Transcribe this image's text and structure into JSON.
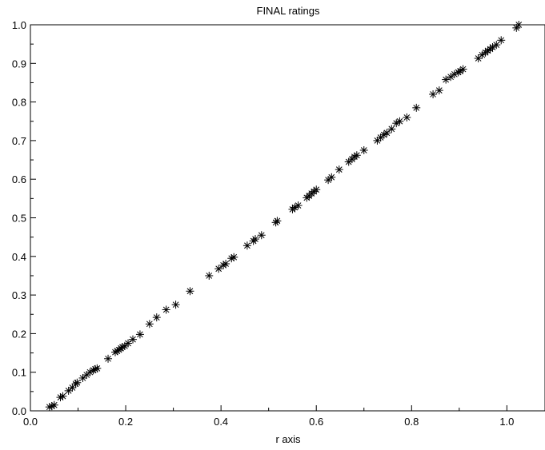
{
  "chart_data": {
    "type": "scatter",
    "title": "FINAL ratings",
    "xlabel": "r axis",
    "ylabel": "",
    "xlim": [
      0.0,
      1.08
    ],
    "ylim": [
      0.0,
      1.0
    ],
    "xticks": [
      0.0,
      0.2,
      0.4,
      0.6,
      0.8,
      1.0
    ],
    "xtick_labels": [
      "0.0",
      "0.2",
      "0.4",
      "0.6",
      "0.8",
      "1.0"
    ],
    "yticks": [
      0.0,
      0.1,
      0.2,
      0.3,
      0.4,
      0.5,
      0.6,
      0.7,
      0.8,
      0.9,
      1.0
    ],
    "ytick_labels": [
      "0.0",
      "0.1",
      "0.2",
      "0.3",
      "0.4",
      "0.5",
      "0.6",
      "0.7",
      "0.8",
      "0.9",
      "1.0"
    ],
    "grid": false,
    "marker": "asterisk",
    "marker_color": "#000000",
    "series": [
      {
        "x": [
          0.04,
          0.045,
          0.05,
          0.063,
          0.068,
          0.08,
          0.088,
          0.095,
          0.098,
          0.11,
          0.118,
          0.125,
          0.132,
          0.136,
          0.14,
          0.163,
          0.178,
          0.182,
          0.186,
          0.19,
          0.193,
          0.198,
          0.205,
          0.215,
          0.23,
          0.25,
          0.265,
          0.285,
          0.305,
          0.335,
          0.375,
          0.395,
          0.405,
          0.41,
          0.422,
          0.427,
          0.455,
          0.468,
          0.472,
          0.485,
          0.515,
          0.518,
          0.55,
          0.555,
          0.562,
          0.58,
          0.585,
          0.59,
          0.595,
          0.6,
          0.625,
          0.632,
          0.648,
          0.668,
          0.675,
          0.68,
          0.685,
          0.7,
          0.728,
          0.735,
          0.742,
          0.748,
          0.758,
          0.768,
          0.775,
          0.79,
          0.81,
          0.845,
          0.858,
          0.872,
          0.882,
          0.89,
          0.898,
          0.902,
          0.908,
          0.94,
          0.948,
          0.955,
          0.96,
          0.965,
          0.97,
          0.978,
          0.988,
          1.02,
          1.025
        ],
        "y": [
          0.01,
          0.012,
          0.015,
          0.035,
          0.038,
          0.052,
          0.06,
          0.07,
          0.073,
          0.085,
          0.093,
          0.1,
          0.105,
          0.108,
          0.11,
          0.135,
          0.152,
          0.155,
          0.158,
          0.162,
          0.165,
          0.168,
          0.175,
          0.185,
          0.198,
          0.225,
          0.242,
          0.262,
          0.275,
          0.31,
          0.35,
          0.368,
          0.377,
          0.381,
          0.395,
          0.398,
          0.428,
          0.44,
          0.445,
          0.455,
          0.488,
          0.492,
          0.522,
          0.527,
          0.532,
          0.552,
          0.557,
          0.563,
          0.568,
          0.573,
          0.598,
          0.605,
          0.625,
          0.645,
          0.652,
          0.658,
          0.662,
          0.675,
          0.7,
          0.708,
          0.715,
          0.72,
          0.73,
          0.745,
          0.75,
          0.76,
          0.785,
          0.82,
          0.83,
          0.858,
          0.865,
          0.872,
          0.877,
          0.88,
          0.885,
          0.913,
          0.922,
          0.928,
          0.933,
          0.937,
          0.942,
          0.948,
          0.96,
          0.992,
          1.0
        ]
      }
    ]
  }
}
